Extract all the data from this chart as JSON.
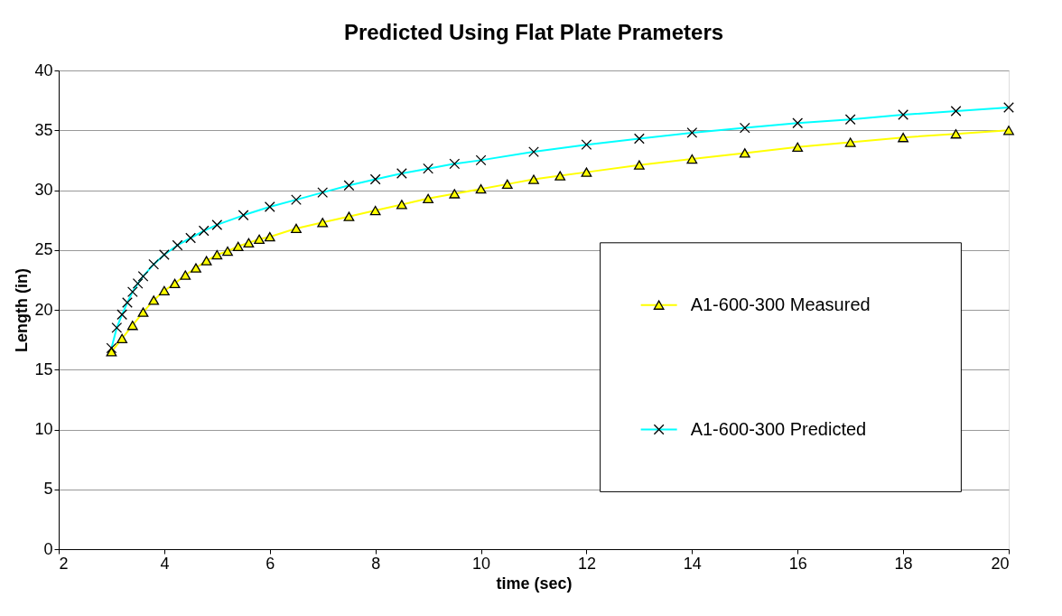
{
  "chart_data": {
    "type": "line",
    "title": "Predicted Using Flat Plate Prameters",
    "xlabel": "time (sec)",
    "ylabel": "Length (in)",
    "xlim": [
      2,
      20
    ],
    "xticks": [
      2,
      4,
      6,
      8,
      10,
      12,
      14,
      16,
      18,
      20
    ],
    "ylim": [
      0,
      40
    ],
    "yticks": [
      0,
      5,
      10,
      15,
      20,
      25,
      30,
      35,
      40
    ],
    "grid": "y",
    "legend": "right",
    "series": [
      {
        "name": "A1-600-300 Measured",
        "color": "#ffff00",
        "marker": "triangle",
        "x": [
          3,
          3.2,
          3.4,
          3.6,
          3.8,
          4,
          4.2,
          4.4,
          4.6,
          4.8,
          5,
          5.2,
          5.4,
          5.6,
          5.8,
          6,
          6.5,
          7,
          7.5,
          8,
          8.5,
          9,
          9.5,
          10,
          10.5,
          11,
          11.5,
          12,
          13,
          14,
          15,
          16,
          17,
          18,
          19,
          20
        ],
        "values": [
          16.5,
          17.6,
          18.7,
          19.8,
          20.8,
          21.6,
          22.2,
          22.9,
          23.5,
          24.1,
          24.6,
          24.9,
          25.3,
          25.6,
          25.9,
          26.1,
          26.8,
          27.3,
          27.8,
          28.3,
          28.8,
          29.3,
          29.7,
          30.1,
          30.5,
          30.9,
          31.2,
          31.5,
          32.1,
          32.6,
          33.1,
          33.6,
          34.0,
          34.4,
          34.7,
          35.0
        ]
      },
      {
        "name": "A1-600-300 Predicted",
        "color": "#00ffff",
        "marker": "cross",
        "x": [
          3,
          3.1,
          3.2,
          3.3,
          3.4,
          3.5,
          3.6,
          3.8,
          4,
          4.25,
          4.5,
          4.75,
          5,
          5.5,
          6,
          6.5,
          7,
          7.5,
          8,
          8.5,
          9,
          9.5,
          10,
          11,
          12,
          13,
          14,
          15,
          16,
          17,
          18,
          19,
          20
        ],
        "values": [
          16.8,
          18.5,
          19.6,
          20.6,
          21.5,
          22.2,
          22.8,
          23.8,
          24.6,
          25.4,
          26.0,
          26.6,
          27.1,
          27.9,
          28.6,
          29.2,
          29.8,
          30.4,
          30.9,
          31.4,
          31.8,
          32.2,
          32.5,
          33.2,
          33.8,
          34.3,
          34.8,
          35.2,
          35.6,
          35.9,
          36.3,
          36.6,
          36.9
        ]
      }
    ]
  }
}
